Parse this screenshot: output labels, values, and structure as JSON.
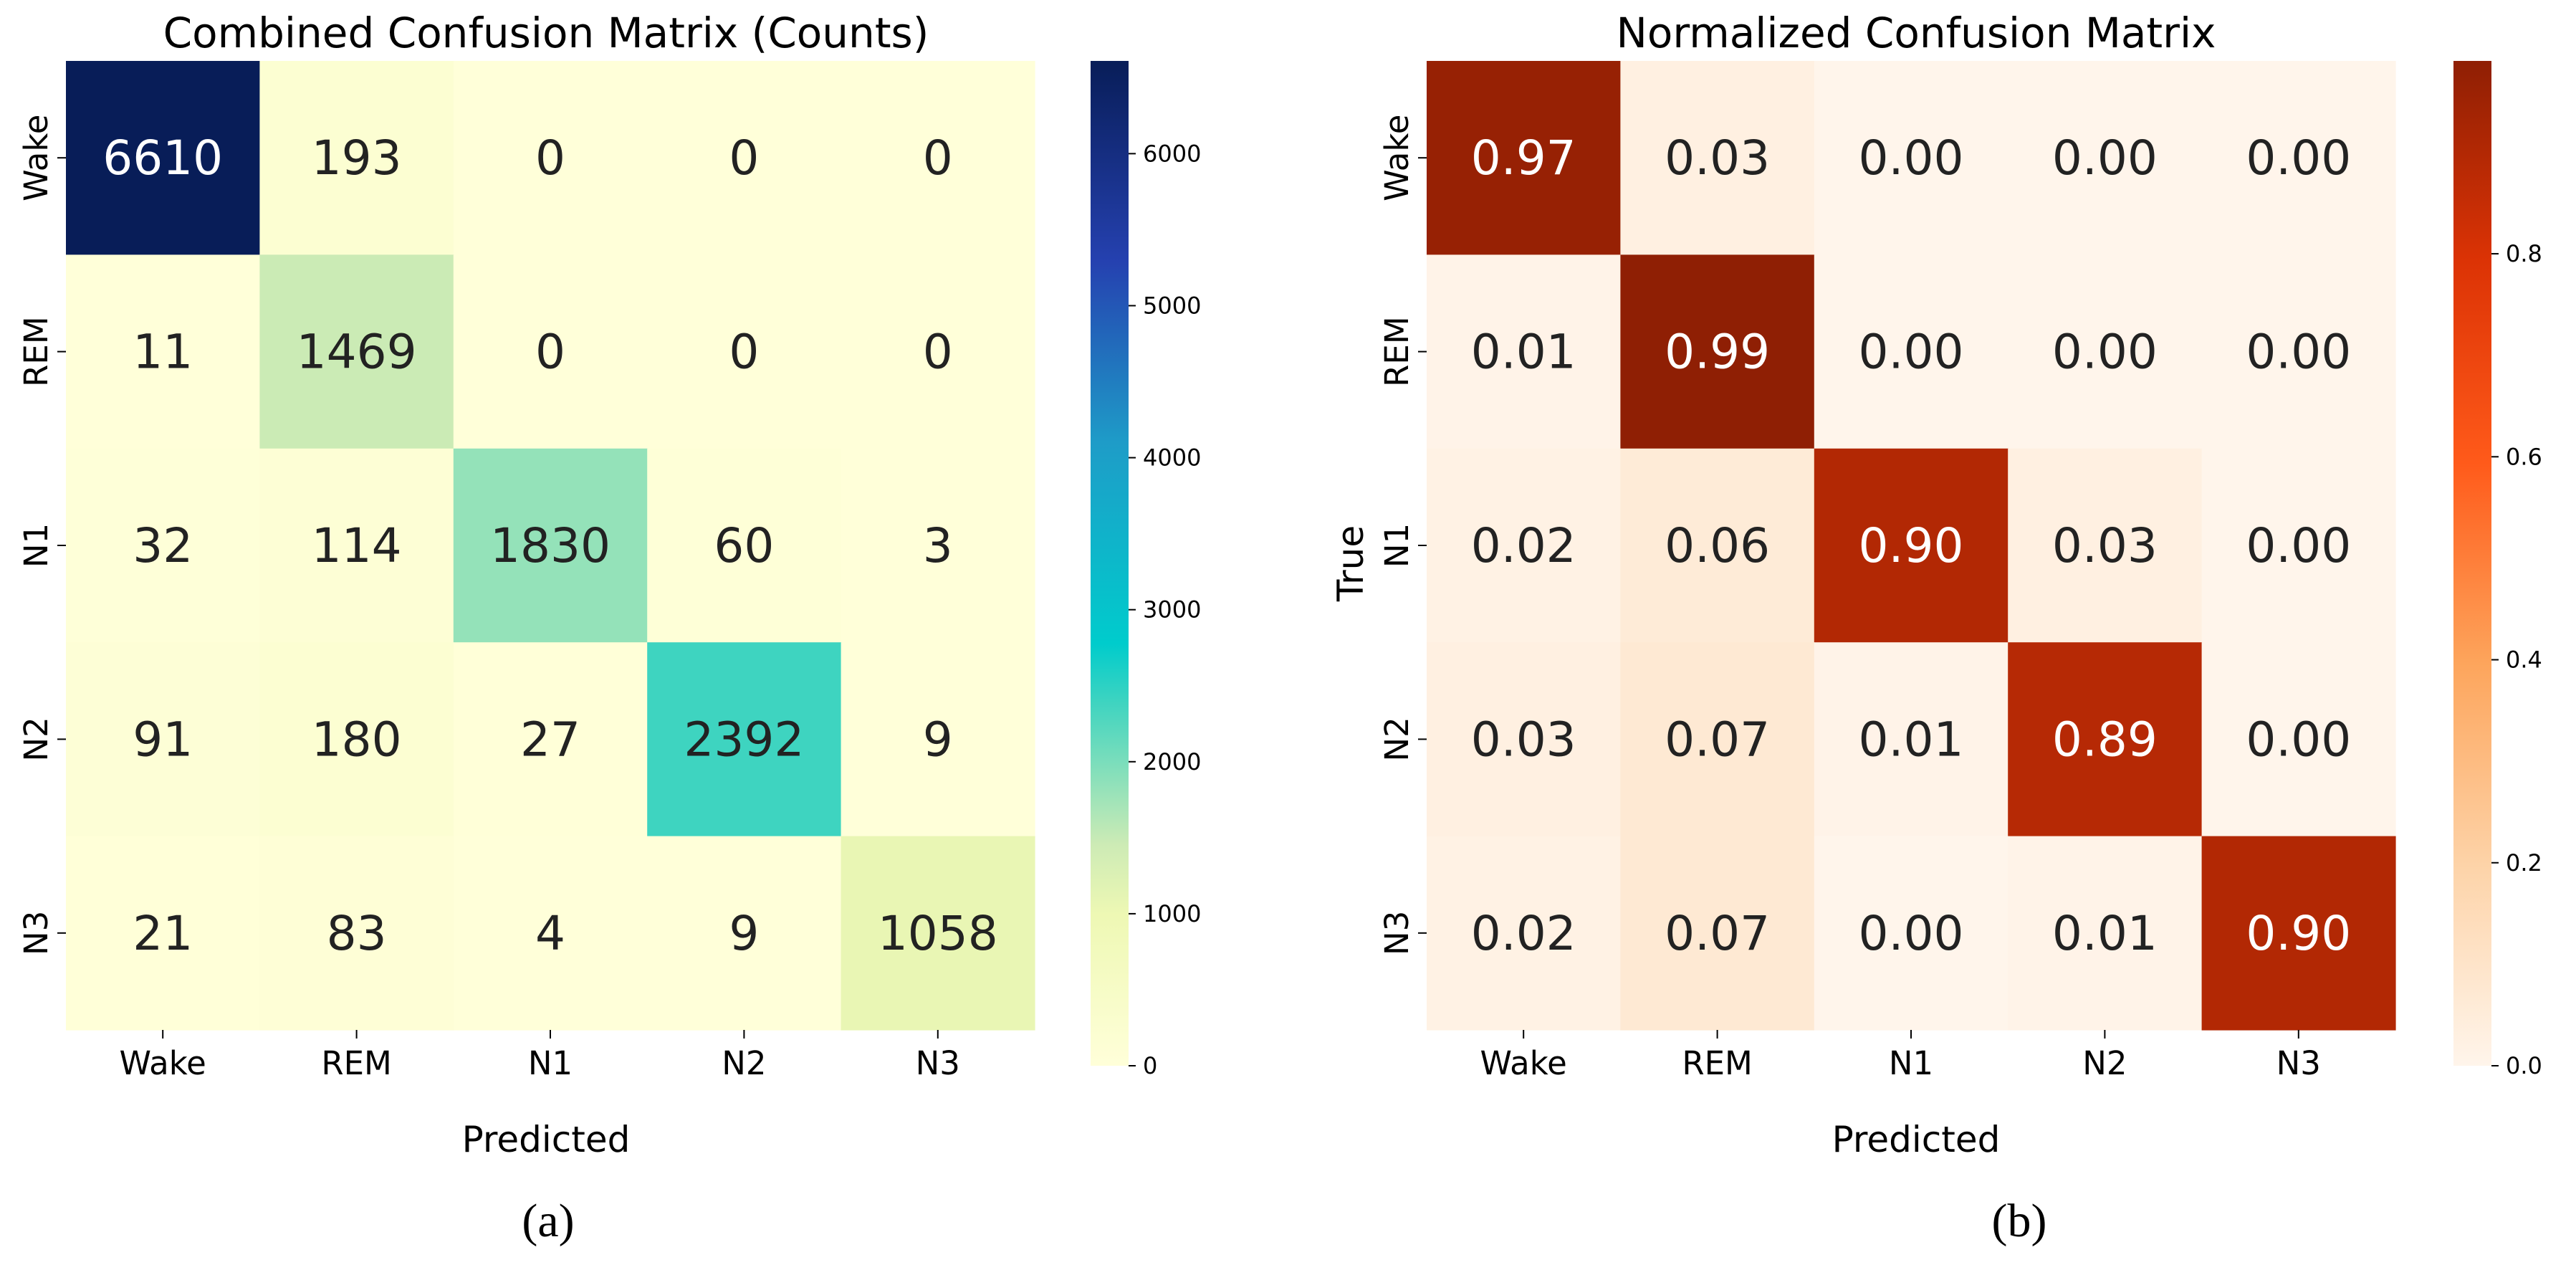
{
  "chart_data": [
    {
      "type": "heatmap",
      "panel_label": "a",
      "title": "Combined Confusion Matrix (Counts)",
      "xlabel": "Predicted",
      "ylabel": "",
      "x_categories": [
        "Wake",
        "REM",
        "N1",
        "N2",
        "N3"
      ],
      "y_categories": [
        "Wake",
        "REM",
        "N1",
        "N2",
        "N3"
      ],
      "values": [
        [
          6610,
          193,
          0,
          0,
          0
        ],
        [
          11,
          1469,
          0,
          0,
          0
        ],
        [
          32,
          114,
          1830,
          60,
          3
        ],
        [
          91,
          180,
          27,
          2392,
          9
        ],
        [
          21,
          83,
          4,
          9,
          1058
        ]
      ],
      "cell_labels": [
        [
          "6610",
          "193",
          "0",
          "0",
          "0"
        ],
        [
          "11",
          "1469",
          "0",
          "0",
          "0"
        ],
        [
          "32",
          "114",
          "1830",
          "60",
          "3"
        ],
        [
          "91",
          "180",
          "27",
          "2392",
          "9"
        ],
        [
          "21",
          "83",
          "4",
          "9",
          "1058"
        ]
      ],
      "colormap": "YlGnBu",
      "colorbar": {
        "range": [
          0,
          6610
        ],
        "ticks": [
          0,
          1000,
          2000,
          3000,
          4000,
          5000,
          6000
        ],
        "tick_labels": [
          "0",
          "1000",
          "2000",
          "3000",
          "4000",
          "5000",
          "6000"
        ]
      }
    },
    {
      "type": "heatmap",
      "panel_label": "b",
      "title": "Normalized Confusion Matrix",
      "xlabel": "Predicted",
      "ylabel": "True",
      "x_categories": [
        "Wake",
        "REM",
        "N1",
        "N2",
        "N3"
      ],
      "y_categories": [
        "Wake",
        "REM",
        "N1",
        "N2",
        "N3"
      ],
      "values": [
        [
          0.97,
          0.03,
          0.0,
          0.0,
          0.0
        ],
        [
          0.01,
          0.99,
          0.0,
          0.0,
          0.0
        ],
        [
          0.02,
          0.06,
          0.9,
          0.03,
          0.0
        ],
        [
          0.03,
          0.07,
          0.01,
          0.89,
          0.0
        ],
        [
          0.02,
          0.07,
          0.0,
          0.01,
          0.9
        ]
      ],
      "cell_labels": [
        [
          "0.97",
          "0.03",
          "0.00",
          "0.00",
          "0.00"
        ],
        [
          "0.01",
          "0.99",
          "0.00",
          "0.00",
          "0.00"
        ],
        [
          "0.02",
          "0.06",
          "0.90",
          "0.03",
          "0.00"
        ],
        [
          "0.03",
          "0.07",
          "0.01",
          "0.89",
          "0.00"
        ],
        [
          "0.02",
          "0.07",
          "0.00",
          "0.01",
          "0.90"
        ]
      ],
      "colormap": "OrRd",
      "colorbar": {
        "range": [
          0,
          0.99
        ],
        "ticks": [
          0.0,
          0.2,
          0.4,
          0.6,
          0.8
        ],
        "tick_labels": [
          "0.0",
          "0.2",
          "0.4",
          "0.6",
          "0.8"
        ]
      }
    }
  ],
  "captions": [
    "(a)",
    "(b)"
  ]
}
